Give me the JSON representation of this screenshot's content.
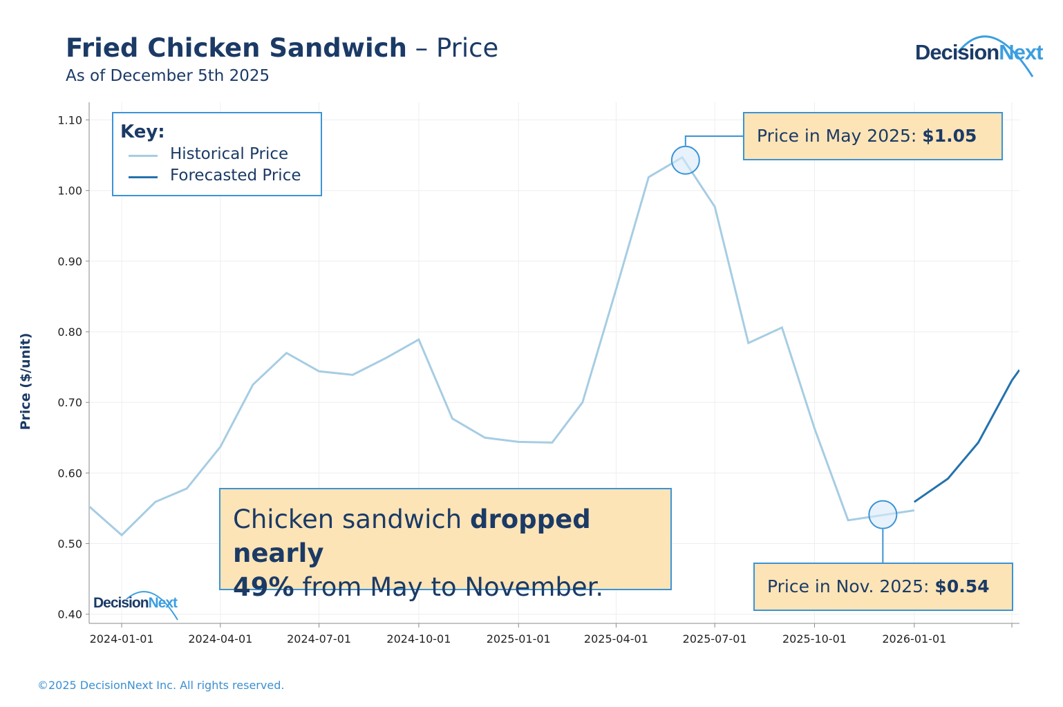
{
  "header": {
    "title_bold": "Fried Chicken Sandwich",
    "title_rest": " – Price",
    "subtitle": "As of December 5th 2025"
  },
  "logo": {
    "text_dark": "Decision",
    "text_light": "Next"
  },
  "footer": "©2025 DecisionNext Inc. All rights reserved.",
  "colors": {
    "historical": "#a6cde3",
    "forecast": "#2472ad",
    "title": "#1b3a66",
    "callout_fill": "#fde4b6",
    "callout_border": "#3b93d4"
  },
  "chart_data": {
    "type": "line",
    "ylabel": "Price ($/unit)",
    "xlabel": "",
    "ylim": [
      0.387,
      1.125
    ],
    "xlim": [
      "2023-12-02",
      "2026-04-08"
    ],
    "yticks": [
      0.4,
      0.5,
      0.6,
      0.7,
      0.8,
      0.9,
      1.0,
      1.1
    ],
    "ytick_labels": [
      "0.40",
      "0.50",
      "0.60",
      "0.70",
      "0.80",
      "0.90",
      "1.00",
      "1.10"
    ],
    "xticks": [
      "2024-01-01",
      "2024-04-01",
      "2024-07-01",
      "2024-10-01",
      "2025-01-01",
      "2025-04-01",
      "2025-07-01",
      "2025-10-01",
      "2026-01-01",
      "2026-04-01"
    ],
    "xtick_labels": [
      "2024-01-01",
      "2024-04-01",
      "2024-07-01",
      "2024-10-01",
      "2025-01-01",
      "2025-04-01",
      "2025-07-01",
      "2025-10-01",
      "2026-01-01",
      ""
    ],
    "grid": true,
    "legend": {
      "title": "Key:",
      "placement": "top-left",
      "entries": [
        "Historical Price",
        "Forecasted Price"
      ]
    },
    "series": [
      {
        "name": "Historical Price",
        "x": [
          "2023-12-01",
          "2024-01-01",
          "2024-02-01",
          "2024-03-01",
          "2024-04-01",
          "2024-05-01",
          "2024-06-01",
          "2024-07-01",
          "2024-08-01",
          "2024-09-01",
          "2024-10-01",
          "2024-11-01",
          "2024-12-01",
          "2025-01-01",
          "2025-02-01",
          "2025-03-01",
          "2025-04-01",
          "2025-05-01",
          "2025-06-01",
          "2025-07-01",
          "2025-08-01",
          "2025-09-01",
          "2025-10-01",
          "2025-11-01",
          "2026-01-01"
        ],
        "values": [
          0.554,
          0.512,
          0.559,
          0.578,
          0.637,
          0.725,
          0.77,
          0.744,
          0.739,
          0.763,
          0.789,
          0.677,
          0.65,
          0.644,
          0.643,
          0.7,
          0.86,
          1.019,
          1.047,
          0.977,
          0.784,
          0.806,
          0.663,
          0.533,
          0.547
        ]
      },
      {
        "name": "Forecasted Price",
        "x": [
          "2026-01-01",
          "2026-02-01",
          "2026-03-01",
          "2026-04-01",
          "2026-04-08"
        ],
        "values": [
          0.559,
          0.592,
          0.643,
          0.731,
          0.746
        ]
      }
    ],
    "annotations": [
      {
        "x": "2025-06-04",
        "y": 1.043,
        "label": "Price in May 2025: ",
        "value": "$1.05"
      },
      {
        "x": "2025-12-03",
        "y": 0.541,
        "label": "Price in Nov. 2025: ",
        "value": "$0.54"
      }
    ],
    "callout": {
      "part1": "Chicken sandwich ",
      "bold1": "dropped nearly",
      "bold2": "49%",
      "part2": " from May to November."
    }
  }
}
